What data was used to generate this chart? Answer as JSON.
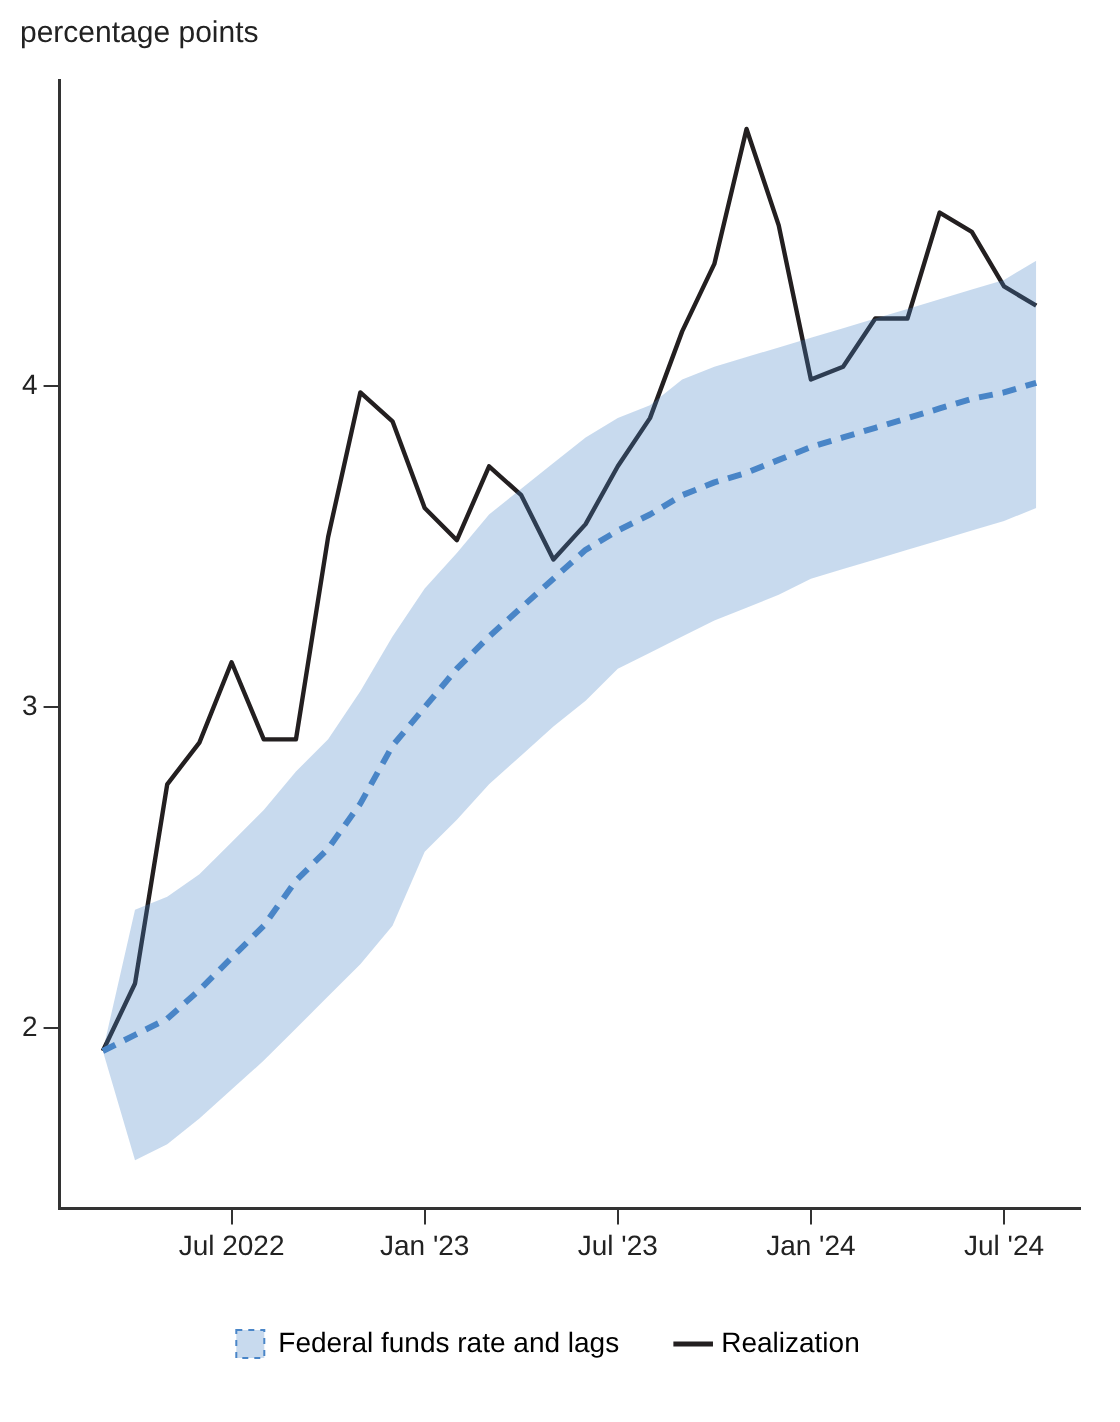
{
  "chart_data": {
    "type": "line",
    "ylabel": "percentage points",
    "x": [
      "2022-03",
      "2022-04",
      "2022-05",
      "2022-06",
      "2022-07",
      "2022-08",
      "2022-09",
      "2022-10",
      "2022-11",
      "2022-12",
      "2023-01",
      "2023-02",
      "2023-03",
      "2023-04",
      "2023-05",
      "2023-06",
      "2023-07",
      "2023-08",
      "2023-09",
      "2023-10",
      "2023-11",
      "2023-12",
      "2024-01",
      "2024-02",
      "2024-03",
      "2024-04",
      "2024-05",
      "2024-06",
      "2024-07",
      "2024-08"
    ],
    "series": [
      {
        "name": "Federal funds rate and lags",
        "color": "#4a86c8",
        "line_style": "dashed",
        "values": [
          1.93,
          1.98,
          2.03,
          2.12,
          2.22,
          2.32,
          2.46,
          2.56,
          2.7,
          2.88,
          3.0,
          3.12,
          3.22,
          3.31,
          3.4,
          3.49,
          3.55,
          3.6,
          3.66,
          3.7,
          3.73,
          3.77,
          3.81,
          3.84,
          3.87,
          3.9,
          3.93,
          3.96,
          3.98,
          4.01
        ],
        "lower": [
          1.93,
          1.59,
          1.64,
          1.72,
          1.81,
          1.9,
          2.0,
          2.1,
          2.2,
          2.32,
          2.55,
          2.65,
          2.76,
          2.85,
          2.94,
          3.02,
          3.12,
          3.17,
          3.22,
          3.27,
          3.31,
          3.35,
          3.4,
          3.43,
          3.46,
          3.49,
          3.52,
          3.55,
          3.58,
          3.62
        ],
        "upper": [
          1.93,
          2.37,
          2.41,
          2.48,
          2.58,
          2.68,
          2.8,
          2.9,
          3.05,
          3.22,
          3.37,
          3.48,
          3.6,
          3.68,
          3.76,
          3.84,
          3.9,
          3.94,
          4.02,
          4.06,
          4.09,
          4.12,
          4.15,
          4.18,
          4.21,
          4.24,
          4.27,
          4.3,
          4.33,
          4.39
        ]
      },
      {
        "name": "Realization",
        "color": "#231f20",
        "line_style": "solid",
        "values": [
          1.93,
          2.14,
          2.76,
          2.89,
          3.14,
          2.9,
          2.9,
          3.53,
          3.98,
          3.89,
          3.62,
          3.52,
          3.75,
          3.66,
          3.46,
          3.57,
          3.75,
          3.9,
          4.17,
          4.38,
          4.8,
          4.5,
          4.02,
          4.06,
          4.21,
          4.21,
          4.54,
          4.48,
          4.31,
          4.25
        ]
      }
    ],
    "xlim": [
      "2022-01-21",
      "2024-09-12"
    ],
    "xticks": [
      {
        "value": "2022-07",
        "label": "Jul 2022"
      },
      {
        "value": "2023-01",
        "label": "Jan '23"
      },
      {
        "value": "2023-07",
        "label": "Jul '23"
      },
      {
        "value": "2024-01",
        "label": "Jan '24"
      },
      {
        "value": "2024-07",
        "label": "Jul '24"
      }
    ],
    "ylim": [
      1.44,
      4.95
    ],
    "yticks": [
      2,
      3,
      4
    ],
    "grid": false,
    "legend": "bottom",
    "marker": "none"
  }
}
